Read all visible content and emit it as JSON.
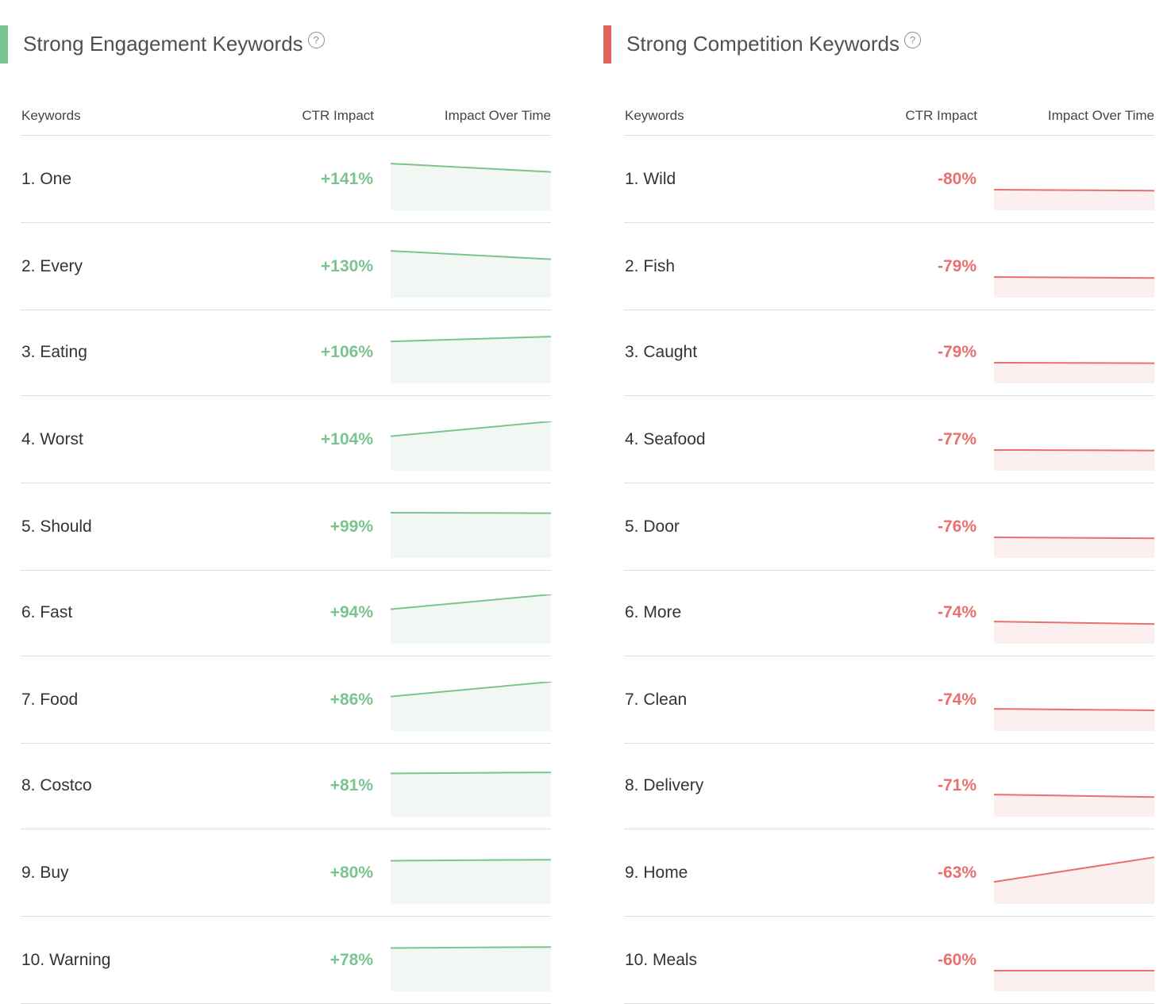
{
  "colors": {
    "positive": "#7cc48f",
    "positive_fill": "#f1f8f3",
    "negative": "#e8706e",
    "negative_fill": "#fbefef",
    "engagement_accent": "#7cc48f",
    "competition_accent": "#e0635e"
  },
  "engagement": {
    "title": "Strong Engagement Keywords",
    "help_icon": "?",
    "headers": {
      "keywords": "Keywords",
      "ctr": "CTR Impact",
      "time": "Impact Over Time"
    },
    "rows": [
      {
        "keyword": "1. One",
        "ctr": "+141%",
        "trend": [
          0.95,
          0.78
        ]
      },
      {
        "keyword": "2. Every",
        "ctr": "+130%",
        "trend": [
          0.95,
          0.78
        ]
      },
      {
        "keyword": "3. Eating",
        "ctr": "+106%",
        "trend": [
          0.85,
          0.95
        ]
      },
      {
        "keyword": "4. Worst",
        "ctr": "+104%",
        "trend": [
          0.7,
          1.0
        ]
      },
      {
        "keyword": "5. Should",
        "ctr": "+99%",
        "trend": [
          0.92,
          0.91
        ]
      },
      {
        "keyword": "6. Fast",
        "ctr": "+94%",
        "trend": [
          0.7,
          1.0
        ]
      },
      {
        "keyword": "7. Food",
        "ctr": "+86%",
        "trend": [
          0.7,
          1.0
        ]
      },
      {
        "keyword": "8. Costco",
        "ctr": "+81%",
        "trend": [
          0.88,
          0.9
        ]
      },
      {
        "keyword": "9. Buy",
        "ctr": "+80%",
        "trend": [
          0.88,
          0.9
        ]
      },
      {
        "keyword": "10. Warning",
        "ctr": "+78%",
        "trend": [
          0.88,
          0.9
        ]
      }
    ]
  },
  "competition": {
    "title": "Strong Competition Keywords",
    "help_icon": "?",
    "headers": {
      "keywords": "Keywords",
      "ctr": "CTR Impact",
      "time": "Impact Over Time"
    },
    "rows": [
      {
        "keyword": "1. Wild",
        "ctr": "-80%",
        "trend": [
          0.42,
          0.4
        ]
      },
      {
        "keyword": "2. Fish",
        "ctr": "-79%",
        "trend": [
          0.42,
          0.4
        ]
      },
      {
        "keyword": "3. Caught",
        "ctr": "-79%",
        "trend": [
          0.42,
          0.41
        ]
      },
      {
        "keyword": "4. Seafood",
        "ctr": "-77%",
        "trend": [
          0.42,
          0.41
        ]
      },
      {
        "keyword": "5. Door",
        "ctr": "-76%",
        "trend": [
          0.42,
          0.4
        ]
      },
      {
        "keyword": "6. More",
        "ctr": "-74%",
        "trend": [
          0.45,
          0.4
        ]
      },
      {
        "keyword": "7. Clean",
        "ctr": "-74%",
        "trend": [
          0.45,
          0.42
        ]
      },
      {
        "keyword": "8. Delivery",
        "ctr": "-71%",
        "trend": [
          0.45,
          0.4
        ]
      },
      {
        "keyword": "9. Home",
        "ctr": "-63%",
        "trend": [
          0.45,
          0.95
        ]
      },
      {
        "keyword": "10. Meals",
        "ctr": "-60%",
        "trend": [
          0.42,
          0.42
        ]
      }
    ]
  }
}
